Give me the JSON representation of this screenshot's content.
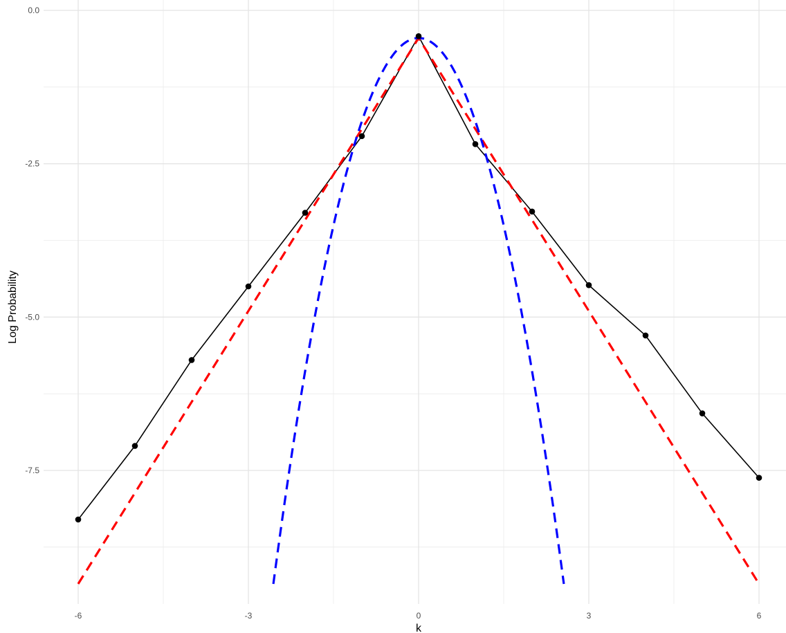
{
  "chart_data": {
    "type": "line",
    "title": "",
    "xlabel": "k",
    "ylabel": "Log Probability",
    "xlim": [
      -6.6,
      6.45
    ],
    "ylim": [
      -9.6,
      0.0
    ],
    "x_ticks": [
      -6,
      -3,
      0,
      3,
      6
    ],
    "x_tick_labels": [
      "-6",
      "-3",
      "0",
      "3",
      "6"
    ],
    "y_ticks": [
      0.0,
      -2.5,
      -5.0,
      -7.5
    ],
    "y_tick_labels": [
      "0.0",
      "-2.5",
      "-5.0",
      "-7.5"
    ],
    "grid": true,
    "legend": "none",
    "series": [
      {
        "style": "solid line with points",
        "color": "#000000",
        "x": [
          -6,
          -5,
          -4,
          -3,
          -2,
          -1,
          0,
          1,
          2,
          3,
          4,
          5,
          6
        ],
        "y": [
          -8.3,
          -7.1,
          -5.7,
          -4.5,
          -3.3,
          -2.05,
          -0.42,
          -2.18,
          -3.28,
          -4.48,
          -5.3,
          -6.57,
          -7.62
        ]
      },
      {
        "style": "dashed line",
        "color": "#ff0000",
        "x": [
          -6,
          0,
          6
        ],
        "y": [
          -9.35,
          -0.45,
          -9.35
        ]
      },
      {
        "style": "dashed line",
        "color": "#0000ff",
        "curve": "quadratic",
        "x_range": [
          -2.56,
          2.56
        ],
        "y_at_zero": -0.45,
        "y_at_ends": -9.35
      }
    ]
  }
}
